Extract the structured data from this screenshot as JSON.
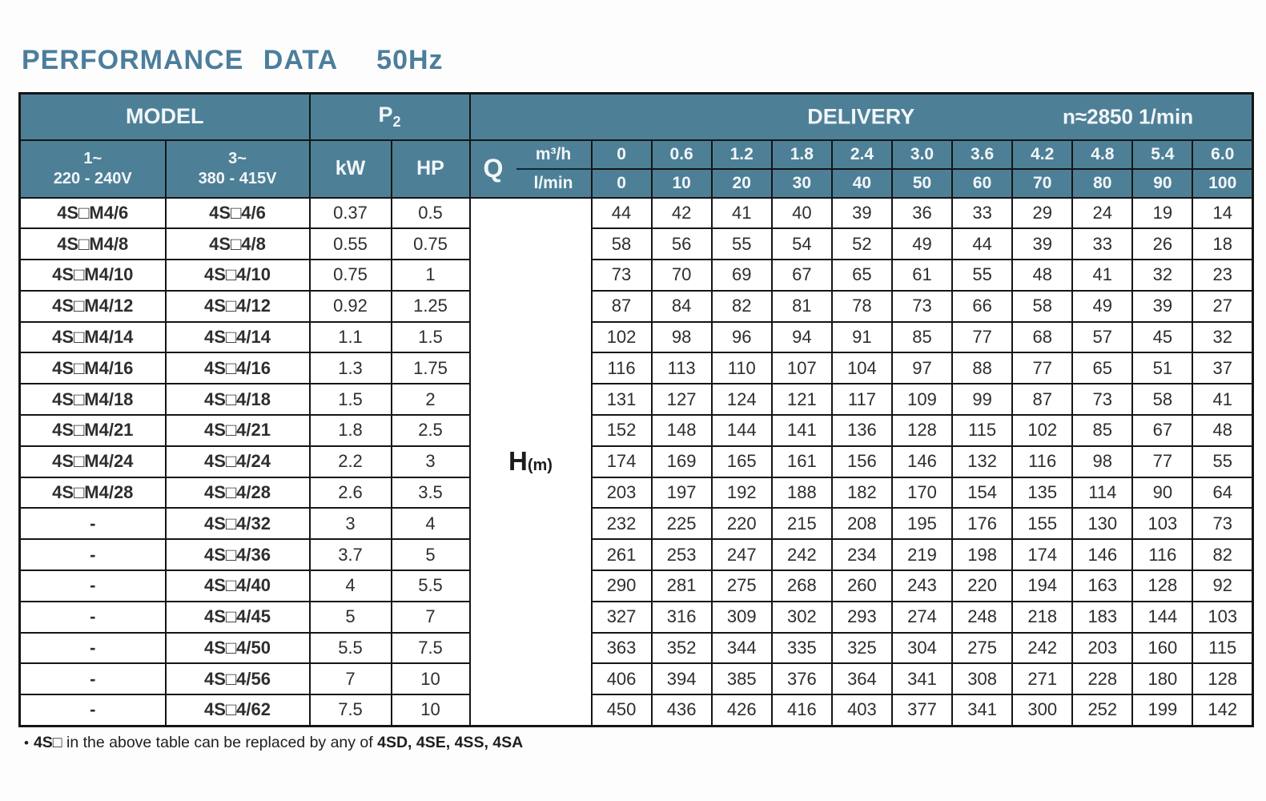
{
  "title": "PERFORMANCE DATA",
  "frequency": "50Hz",
  "colors": {
    "header_bg": "#4d8097",
    "header_text": "#f2f6f8",
    "title_text": "#4b7e9c",
    "border": "#151515"
  },
  "table": {
    "header": {
      "model": "MODEL",
      "p2": "P",
      "p2_sub": "2",
      "delivery": "DELIVERY",
      "speed": "n≈2850 1/min",
      "phase1_line1": "1~",
      "phase1_line2": "220 - 240V",
      "phase3_line1": "3~",
      "phase3_line2": "380 - 415V",
      "kw": "kW",
      "hp": "HP",
      "q": "Q",
      "m3h": "m³/h",
      "lmin": "l/min",
      "flow_m3h": [
        "0",
        "0.6",
        "1.2",
        "1.8",
        "2.4",
        "3.0",
        "3.6",
        "4.2",
        "4.8",
        "5.4",
        "6.0"
      ],
      "flow_lmin": [
        "0",
        "10",
        "20",
        "30",
        "40",
        "50",
        "60",
        "70",
        "80",
        "90",
        "100"
      ]
    },
    "h_label": "H",
    "h_unit": "(m)",
    "rows": [
      {
        "model1": "4S□M4/6",
        "model3": "4S□4/6",
        "kw": "0.37",
        "hp": "0.5",
        "h": [
          "44",
          "42",
          "41",
          "40",
          "39",
          "36",
          "33",
          "29",
          "24",
          "19",
          "14"
        ]
      },
      {
        "model1": "4S□M4/8",
        "model3": "4S□4/8",
        "kw": "0.55",
        "hp": "0.75",
        "h": [
          "58",
          "56",
          "55",
          "54",
          "52",
          "49",
          "44",
          "39",
          "33",
          "26",
          "18"
        ]
      },
      {
        "model1": "4S□M4/10",
        "model3": "4S□4/10",
        "kw": "0.75",
        "hp": "1",
        "h": [
          "73",
          "70",
          "69",
          "67",
          "65",
          "61",
          "55",
          "48",
          "41",
          "32",
          "23"
        ]
      },
      {
        "model1": "4S□M4/12",
        "model3": "4S□4/12",
        "kw": "0.92",
        "hp": "1.25",
        "h": [
          "87",
          "84",
          "82",
          "81",
          "78",
          "73",
          "66",
          "58",
          "49",
          "39",
          "27"
        ]
      },
      {
        "model1": "4S□M4/14",
        "model3": "4S□4/14",
        "kw": "1.1",
        "hp": "1.5",
        "h": [
          "102",
          "98",
          "96",
          "94",
          "91",
          "85",
          "77",
          "68",
          "57",
          "45",
          "32"
        ]
      },
      {
        "model1": "4S□M4/16",
        "model3": "4S□4/16",
        "kw": "1.3",
        "hp": "1.75",
        "h": [
          "116",
          "113",
          "110",
          "107",
          "104",
          "97",
          "88",
          "77",
          "65",
          "51",
          "37"
        ]
      },
      {
        "model1": "4S□M4/18",
        "model3": "4S□4/18",
        "kw": "1.5",
        "hp": "2",
        "h": [
          "131",
          "127",
          "124",
          "121",
          "117",
          "109",
          "99",
          "87",
          "73",
          "58",
          "41"
        ]
      },
      {
        "model1": "4S□M4/21",
        "model3": "4S□4/21",
        "kw": "1.8",
        "hp": "2.5",
        "h": [
          "152",
          "148",
          "144",
          "141",
          "136",
          "128",
          "115",
          "102",
          "85",
          "67",
          "48"
        ]
      },
      {
        "model1": "4S□M4/24",
        "model3": "4S□4/24",
        "kw": "2.2",
        "hp": "3",
        "h": [
          "174",
          "169",
          "165",
          "161",
          "156",
          "146",
          "132",
          "116",
          "98",
          "77",
          "55"
        ]
      },
      {
        "model1": "4S□M4/28",
        "model3": "4S□4/28",
        "kw": "2.6",
        "hp": "3.5",
        "h": [
          "203",
          "197",
          "192",
          "188",
          "182",
          "170",
          "154",
          "135",
          "114",
          "90",
          "64"
        ]
      },
      {
        "model1": "-",
        "model3": "4S□4/32",
        "kw": "3",
        "hp": "4",
        "h": [
          "232",
          "225",
          "220",
          "215",
          "208",
          "195",
          "176",
          "155",
          "130",
          "103",
          "73"
        ]
      },
      {
        "model1": "-",
        "model3": "4S□4/36",
        "kw": "3.7",
        "hp": "5",
        "h": [
          "261",
          "253",
          "247",
          "242",
          "234",
          "219",
          "198",
          "174",
          "146",
          "116",
          "82"
        ]
      },
      {
        "model1": "-",
        "model3": "4S□4/40",
        "kw": "4",
        "hp": "5.5",
        "h": [
          "290",
          "281",
          "275",
          "268",
          "260",
          "243",
          "220",
          "194",
          "163",
          "128",
          "92"
        ]
      },
      {
        "model1": "-",
        "model3": "4S□4/45",
        "kw": "5",
        "hp": "7",
        "h": [
          "327",
          "316",
          "309",
          "302",
          "293",
          "274",
          "248",
          "218",
          "183",
          "144",
          "103"
        ]
      },
      {
        "model1": "-",
        "model3": "4S□4/50",
        "kw": "5.5",
        "hp": "7.5",
        "h": [
          "363",
          "352",
          "344",
          "335",
          "325",
          "304",
          "275",
          "242",
          "203",
          "160",
          "115"
        ]
      },
      {
        "model1": "-",
        "model3": "4S□4/56",
        "kw": "7",
        "hp": "10",
        "h": [
          "406",
          "394",
          "385",
          "376",
          "364",
          "341",
          "308",
          "271",
          "228",
          "180",
          "128"
        ]
      },
      {
        "model1": "-",
        "model3": "4S□4/62",
        "kw": "7.5",
        "hp": "10",
        "h": [
          "450",
          "436",
          "426",
          "416",
          "403",
          "377",
          "341",
          "300",
          "252",
          "199",
          "142"
        ]
      }
    ]
  },
  "note": {
    "bullet": "•",
    "bold1": "4S□",
    "mid": " in the above table can be replaced by any of ",
    "bold2": "4SD, 4SE, 4SS, 4SA"
  }
}
